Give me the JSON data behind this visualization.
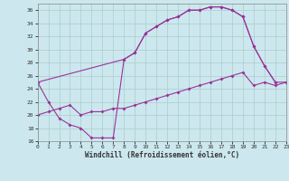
{
  "bg_color": "#cce8ee",
  "grid_color": "#aacccc",
  "line_color": "#993399",
  "xlabel": "Windchill (Refroidissement éolien,°C)",
  "xlim": [
    0,
    23
  ],
  "ylim": [
    16,
    37
  ],
  "xticks": [
    0,
    1,
    2,
    3,
    4,
    5,
    6,
    7,
    8,
    9,
    10,
    11,
    12,
    13,
    14,
    15,
    16,
    17,
    18,
    19,
    20,
    21,
    22,
    23
  ],
  "yticks": [
    16,
    18,
    20,
    22,
    24,
    26,
    28,
    30,
    32,
    34,
    36
  ],
  "curve1_x": [
    0,
    1,
    2,
    3,
    4,
    5,
    6,
    7,
    8,
    9,
    10,
    11,
    12,
    13,
    14,
    15,
    16,
    17,
    18,
    19,
    20,
    21,
    22
  ],
  "curve1_y": [
    25,
    22,
    19.5,
    18.5,
    18,
    16.5,
    16.5,
    16.5,
    28.5,
    29.5,
    32.5,
    33.5,
    34.5,
    35,
    36,
    36,
    36.5,
    36.5,
    36,
    35,
    30.5,
    27.5,
    25
  ],
  "curve2_x": [
    0,
    1,
    2,
    3,
    4,
    5,
    6,
    7,
    8,
    9,
    10,
    11,
    12,
    13,
    14,
    15,
    16,
    17,
    18,
    19,
    20,
    21,
    22,
    23
  ],
  "curve2_y": [
    20,
    20.5,
    21,
    21.5,
    20.0,
    20.5,
    20.5,
    21.0,
    21.0,
    21.5,
    22.0,
    22.5,
    23.0,
    23.5,
    24.0,
    24.5,
    25.0,
    25.5,
    26.0,
    26.5,
    24.5,
    25.0,
    24.5,
    25.0
  ],
  "curve3_x": [
    0,
    8,
    9,
    10,
    11,
    12,
    13,
    14,
    15,
    16,
    17,
    18,
    19,
    20,
    21,
    22,
    23
  ],
  "curve3_y": [
    25,
    28.5,
    29.5,
    32.5,
    33.5,
    34.5,
    35,
    36,
    36,
    36.5,
    36.5,
    36,
    35,
    30.5,
    27.5,
    25,
    25
  ]
}
